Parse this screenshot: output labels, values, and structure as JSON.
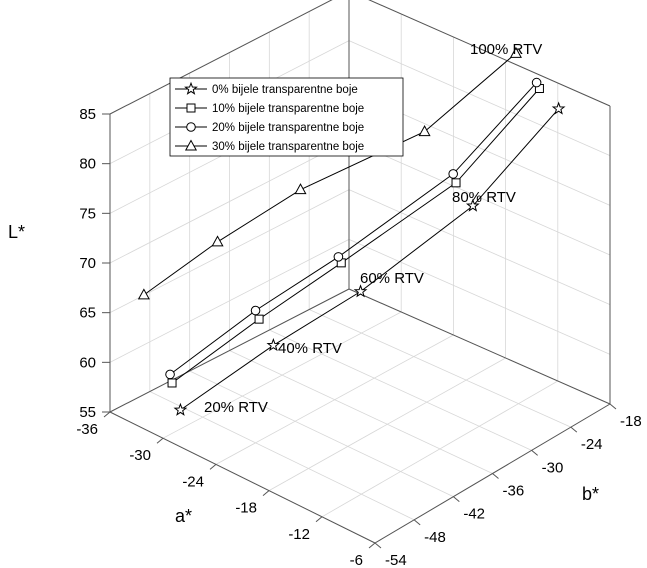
{
  "chart_data": {
    "type": "line3d",
    "title": "",
    "axes": {
      "z": {
        "label": "L*",
        "ticks": [
          "55",
          "60",
          "65",
          "70",
          "75",
          "80",
          "85"
        ]
      },
      "x": {
        "label": "a*",
        "ticks": [
          "-36",
          "-30",
          "-24",
          "-18",
          "-12",
          "-6"
        ]
      },
      "y": {
        "label": "b*",
        "ticks": [
          "-54",
          "-48",
          "-42",
          "-36",
          "-30",
          "-24",
          "-18"
        ]
      }
    },
    "grid": true,
    "legend_position": "top-left",
    "series": [
      {
        "name": "0%  bijele transparentne boje",
        "marker": "star",
        "a": [
          -29.9,
          -24.6,
          -19.4,
          -12.5,
          -7.4
        ],
        "b": [
          -51.5,
          -44.5,
          -38.2,
          -30.3,
          -24.0
        ],
        "L": [
          57.0,
          63.3,
          68.6,
          77.1,
          86.5
        ]
      },
      {
        "name": "10%  bijele transparentne boje",
        "marker": "square",
        "a": [
          -31.3,
          -26.6,
          -21.9,
          -14.8,
          -9.9
        ],
        "b": [
          -50.9,
          -44.0,
          -37.8,
          -29.8,
          -23.6
        ],
        "L": [
          58.9,
          64.9,
          70.3,
          78.3,
          87.4
        ]
      },
      {
        "name": "20%  bijele transparentne boje",
        "marker": "circle",
        "a": [
          -31.6,
          -27.0,
          -22.3,
          -15.2,
          -10.3
        ],
        "b": [
          -50.8,
          -44.0,
          -37.7,
          -29.7,
          -23.5
        ],
        "L": [
          59.6,
          65.6,
          70.7,
          79.0,
          87.8
        ]
      },
      {
        "name": "30%  bijele transparentne boje",
        "marker": "triangle",
        "a": [
          -36.6,
          -32.3,
          -27.6,
          -19.3,
          -13.8
        ],
        "b": [
          -48.1,
          -42.7,
          -36.4,
          -28.6,
          -22.0
        ],
        "L": [
          64.5,
          69.8,
          74.8,
          81.2,
          88.8
        ]
      }
    ],
    "annotations": [
      "20% RTV",
      "40% RTV",
      "60% RTV",
      "80% RTV",
      "100% RTV"
    ]
  }
}
